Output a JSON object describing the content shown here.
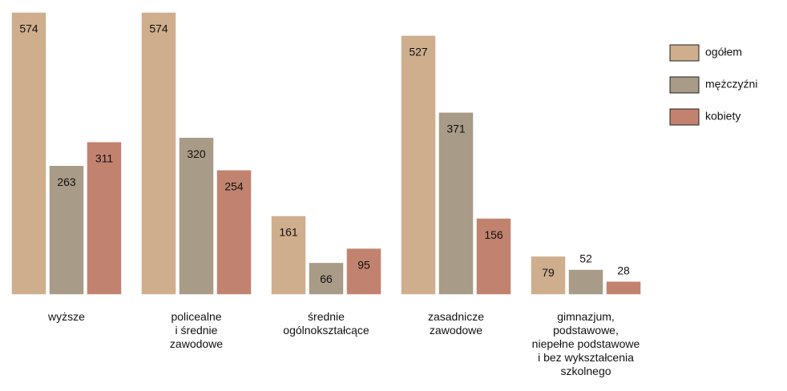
{
  "chart_data": {
    "type": "bar",
    "categories": [
      [
        "wyższe"
      ],
      [
        "policealne",
        "i średnie",
        "zawodowe"
      ],
      [
        "średnie",
        "ogólnokształcące"
      ],
      [
        "zasadnicze",
        "zawodowe"
      ],
      [
        "gimnazjum,",
        "podstawowe,",
        "niepełne podstawowe",
        "i bez wykształcenia",
        "szkolnego"
      ]
    ],
    "series": [
      {
        "name": "ogółem",
        "color": "#cfae8e",
        "values": [
          574,
          574,
          161,
          527,
          79
        ]
      },
      {
        "name": "mężczyźni",
        "color": "#a89b87",
        "values": [
          263,
          320,
          66,
          371,
          52
        ]
      },
      {
        "name": "kobiety",
        "color": "#c1836f",
        "values": [
          311,
          254,
          95,
          156,
          28
        ]
      }
    ],
    "legend": "top-right"
  }
}
